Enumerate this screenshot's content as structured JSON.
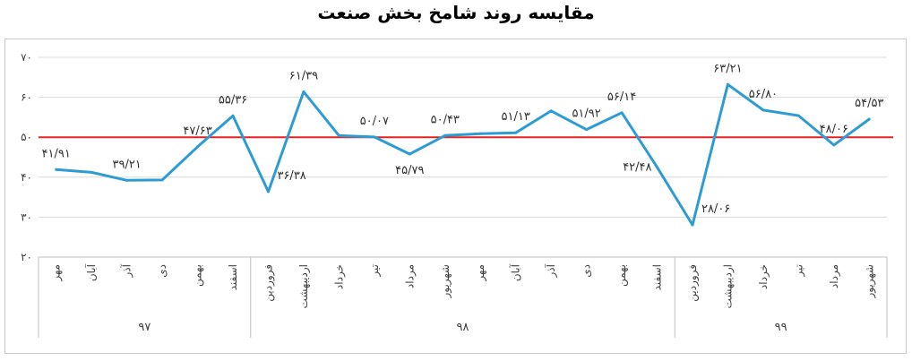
{
  "chart_data": {
    "type": "line",
    "title": "مقایسه روند شامخ بخش صنعت",
    "xlabel": "",
    "ylabel": "",
    "ylim": [
      20,
      70
    ],
    "yticks": [
      "۲۰",
      "۳۰",
      "۴۰",
      "۵۰",
      "۶۰",
      "۷۰"
    ],
    "grid": true,
    "categories": [
      "مهر",
      "آبان",
      "آذر",
      "دی",
      "بهمن",
      "اسفند",
      "فروردین",
      "اردیبهشت",
      "خرداد",
      "تیر",
      "مرداد",
      "شهریور",
      "مهر",
      "آبان",
      "آذر",
      "دی",
      "بهمن",
      "اسفند",
      "فروردین",
      "اردیبهشت",
      "خرداد",
      "تیر",
      "مرداد",
      "شهریور"
    ],
    "groups": [
      {
        "label": "۹۷",
        "count": 6
      },
      {
        "label": "۹۸",
        "count": 12
      },
      {
        "label": "۹۹",
        "count": 6
      }
    ],
    "series": [
      {
        "color": "#2e9cd3",
        "values": [
          41.91,
          41.2,
          39.21,
          39.3,
          47.63,
          55.36,
          36.38,
          61.39,
          50.4,
          50.07,
          45.79,
          50.43,
          50.9,
          51.13,
          56.6,
          51.92,
          56.14,
          42.48,
          28.06,
          63.21,
          56.8,
          55.4,
          48.06,
          54.53
        ]
      }
    ],
    "reference_line": {
      "value": 50,
      "color": "#e3231f"
    },
    "data_labels": [
      {
        "index": 0,
        "text": "۴۱/۹۱",
        "pos": "above"
      },
      {
        "index": 2,
        "text": "۳۹/۲۱",
        "pos": "above"
      },
      {
        "index": 4,
        "text": "۴۷/۶۳",
        "pos": "above"
      },
      {
        "index": 5,
        "text": "۵۵/۳۶",
        "pos": "above"
      },
      {
        "index": 6,
        "text": "۳۶/۳۸",
        "pos": "right"
      },
      {
        "index": 7,
        "text": "۶۱/۳۹",
        "pos": "above"
      },
      {
        "index": 9,
        "text": "۵۰/۰۷",
        "pos": "above"
      },
      {
        "index": 10,
        "text": "۴۵/۷۹",
        "pos": "below"
      },
      {
        "index": 11,
        "text": "۵۰/۴۳",
        "pos": "above"
      },
      {
        "index": 13,
        "text": "۵۱/۱۳",
        "pos": "above"
      },
      {
        "index": 15,
        "text": "۵۱/۹۲",
        "pos": "above"
      },
      {
        "index": 16,
        "text": "۵۶/۱۴",
        "pos": "above"
      },
      {
        "index": 17,
        "text": "۴۲/۴۸",
        "pos": "left"
      },
      {
        "index": 18,
        "text": "۲۸/۰۶",
        "pos": "right"
      },
      {
        "index": 19,
        "text": "۶۳/۲۱",
        "pos": "above"
      },
      {
        "index": 20,
        "text": "۵۶/۸۰",
        "pos": "above"
      },
      {
        "index": 22,
        "text": "۴۸/۰۶",
        "pos": "above"
      },
      {
        "index": 23,
        "text": "۵۴/۵۳",
        "pos": "above"
      }
    ]
  }
}
